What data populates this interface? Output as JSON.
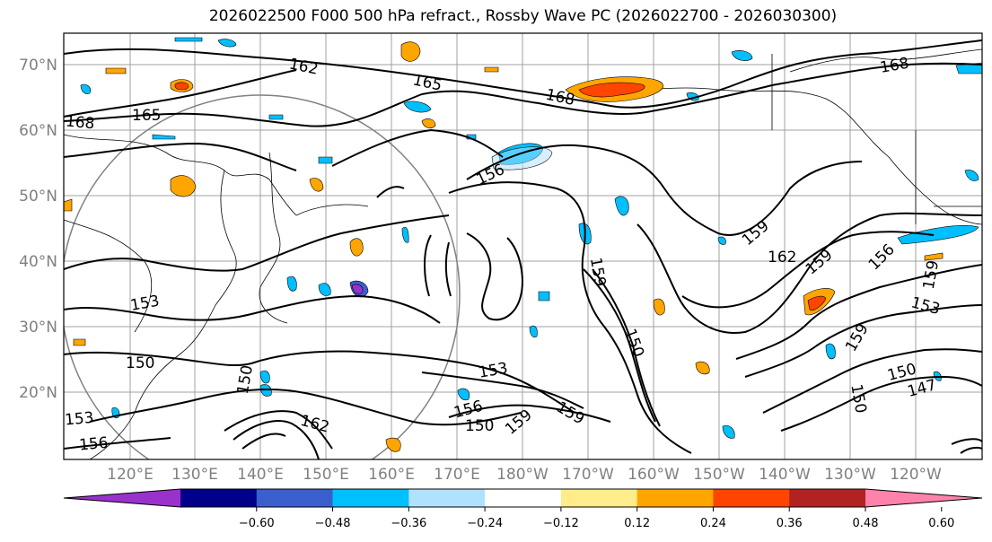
{
  "title": "2026022500 F000 500 hPa refract., Rossby Wave PC (2026022700 - 2026030300)",
  "lat_labels": [
    "70°N",
    "60°N",
    "50°N",
    "40°N",
    "30°N",
    "20°N"
  ],
  "lon_labels": [
    "120°E",
    "130°E",
    "140°E",
    "150°E",
    "160°E",
    "170°E",
    "180°W",
    "170°W",
    "160°W",
    "150°W",
    "140°W",
    "130°W",
    "120°W"
  ],
  "colorbar": {
    "colors": [
      "#9932cc",
      "#00008b",
      "#3a5fcd",
      "#00bfff",
      "#b0e2ff",
      "#ffffff",
      "#ffec8b",
      "#ffa500",
      "#ff4500",
      "#b22222",
      "#ff82ab"
    ],
    "tick_labels": [
      "−0.60",
      "−0.48",
      "−0.36",
      "−0.24",
      "−0.12",
      "0.12",
      "0.24",
      "0.36",
      "0.48",
      "0.60"
    ]
  },
  "contour_labels": [
    "162",
    "165",
    "168",
    "165",
    "168",
    "168",
    "156",
    "159",
    "162",
    "159",
    "156",
    "159",
    "153",
    "153",
    "150",
    "153",
    "156",
    "159",
    "150",
    "159",
    "150",
    "147",
    "150",
    "153",
    "156",
    "162",
    "150",
    "159",
    "159",
    "150"
  ]
}
